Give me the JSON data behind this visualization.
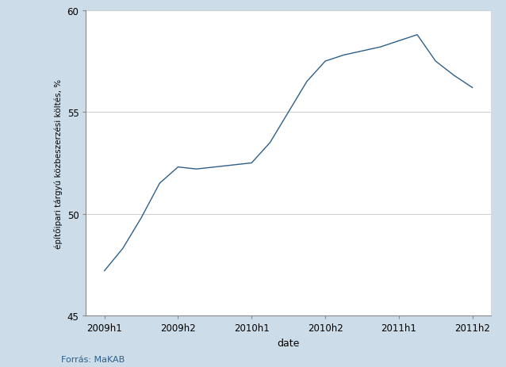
{
  "x_labels": [
    "2009h1",
    "2009h2",
    "2010h1",
    "2010h2",
    "2011h1",
    "2011h2"
  ],
  "x_tick_positions": [
    0,
    2,
    4,
    6,
    8,
    10
  ],
  "x_values": [
    0,
    0.5,
    1,
    1.5,
    2,
    2.5,
    3,
    3.5,
    4,
    4.5,
    5,
    5.5,
    6,
    6.5,
    7,
    7.5,
    8,
    8.5,
    9,
    9.5,
    10
  ],
  "y_values": [
    47.2,
    48.3,
    49.8,
    51.5,
    52.3,
    52.2,
    52.3,
    52.4,
    52.5,
    53.5,
    55.0,
    56.5,
    57.5,
    57.8,
    58.0,
    58.2,
    58.5,
    58.8,
    57.5,
    56.8,
    56.2
  ],
  "xlabel": "date",
  "ylabel": "építőipari tárgyú közbeszerzési költés, %",
  "ylim": [
    45,
    60
  ],
  "yticks": [
    45,
    50,
    55,
    60
  ],
  "line_color": "#2e5f8a",
  "line_width": 1.0,
  "figure_background_color": "#ccdce8",
  "plot_background": "#ffffff",
  "source_text": "Forrás: MaKAB",
  "source_color": "#2e5f8a",
  "grid_color": "#d0d0d0",
  "grid_alpha": 1.0
}
